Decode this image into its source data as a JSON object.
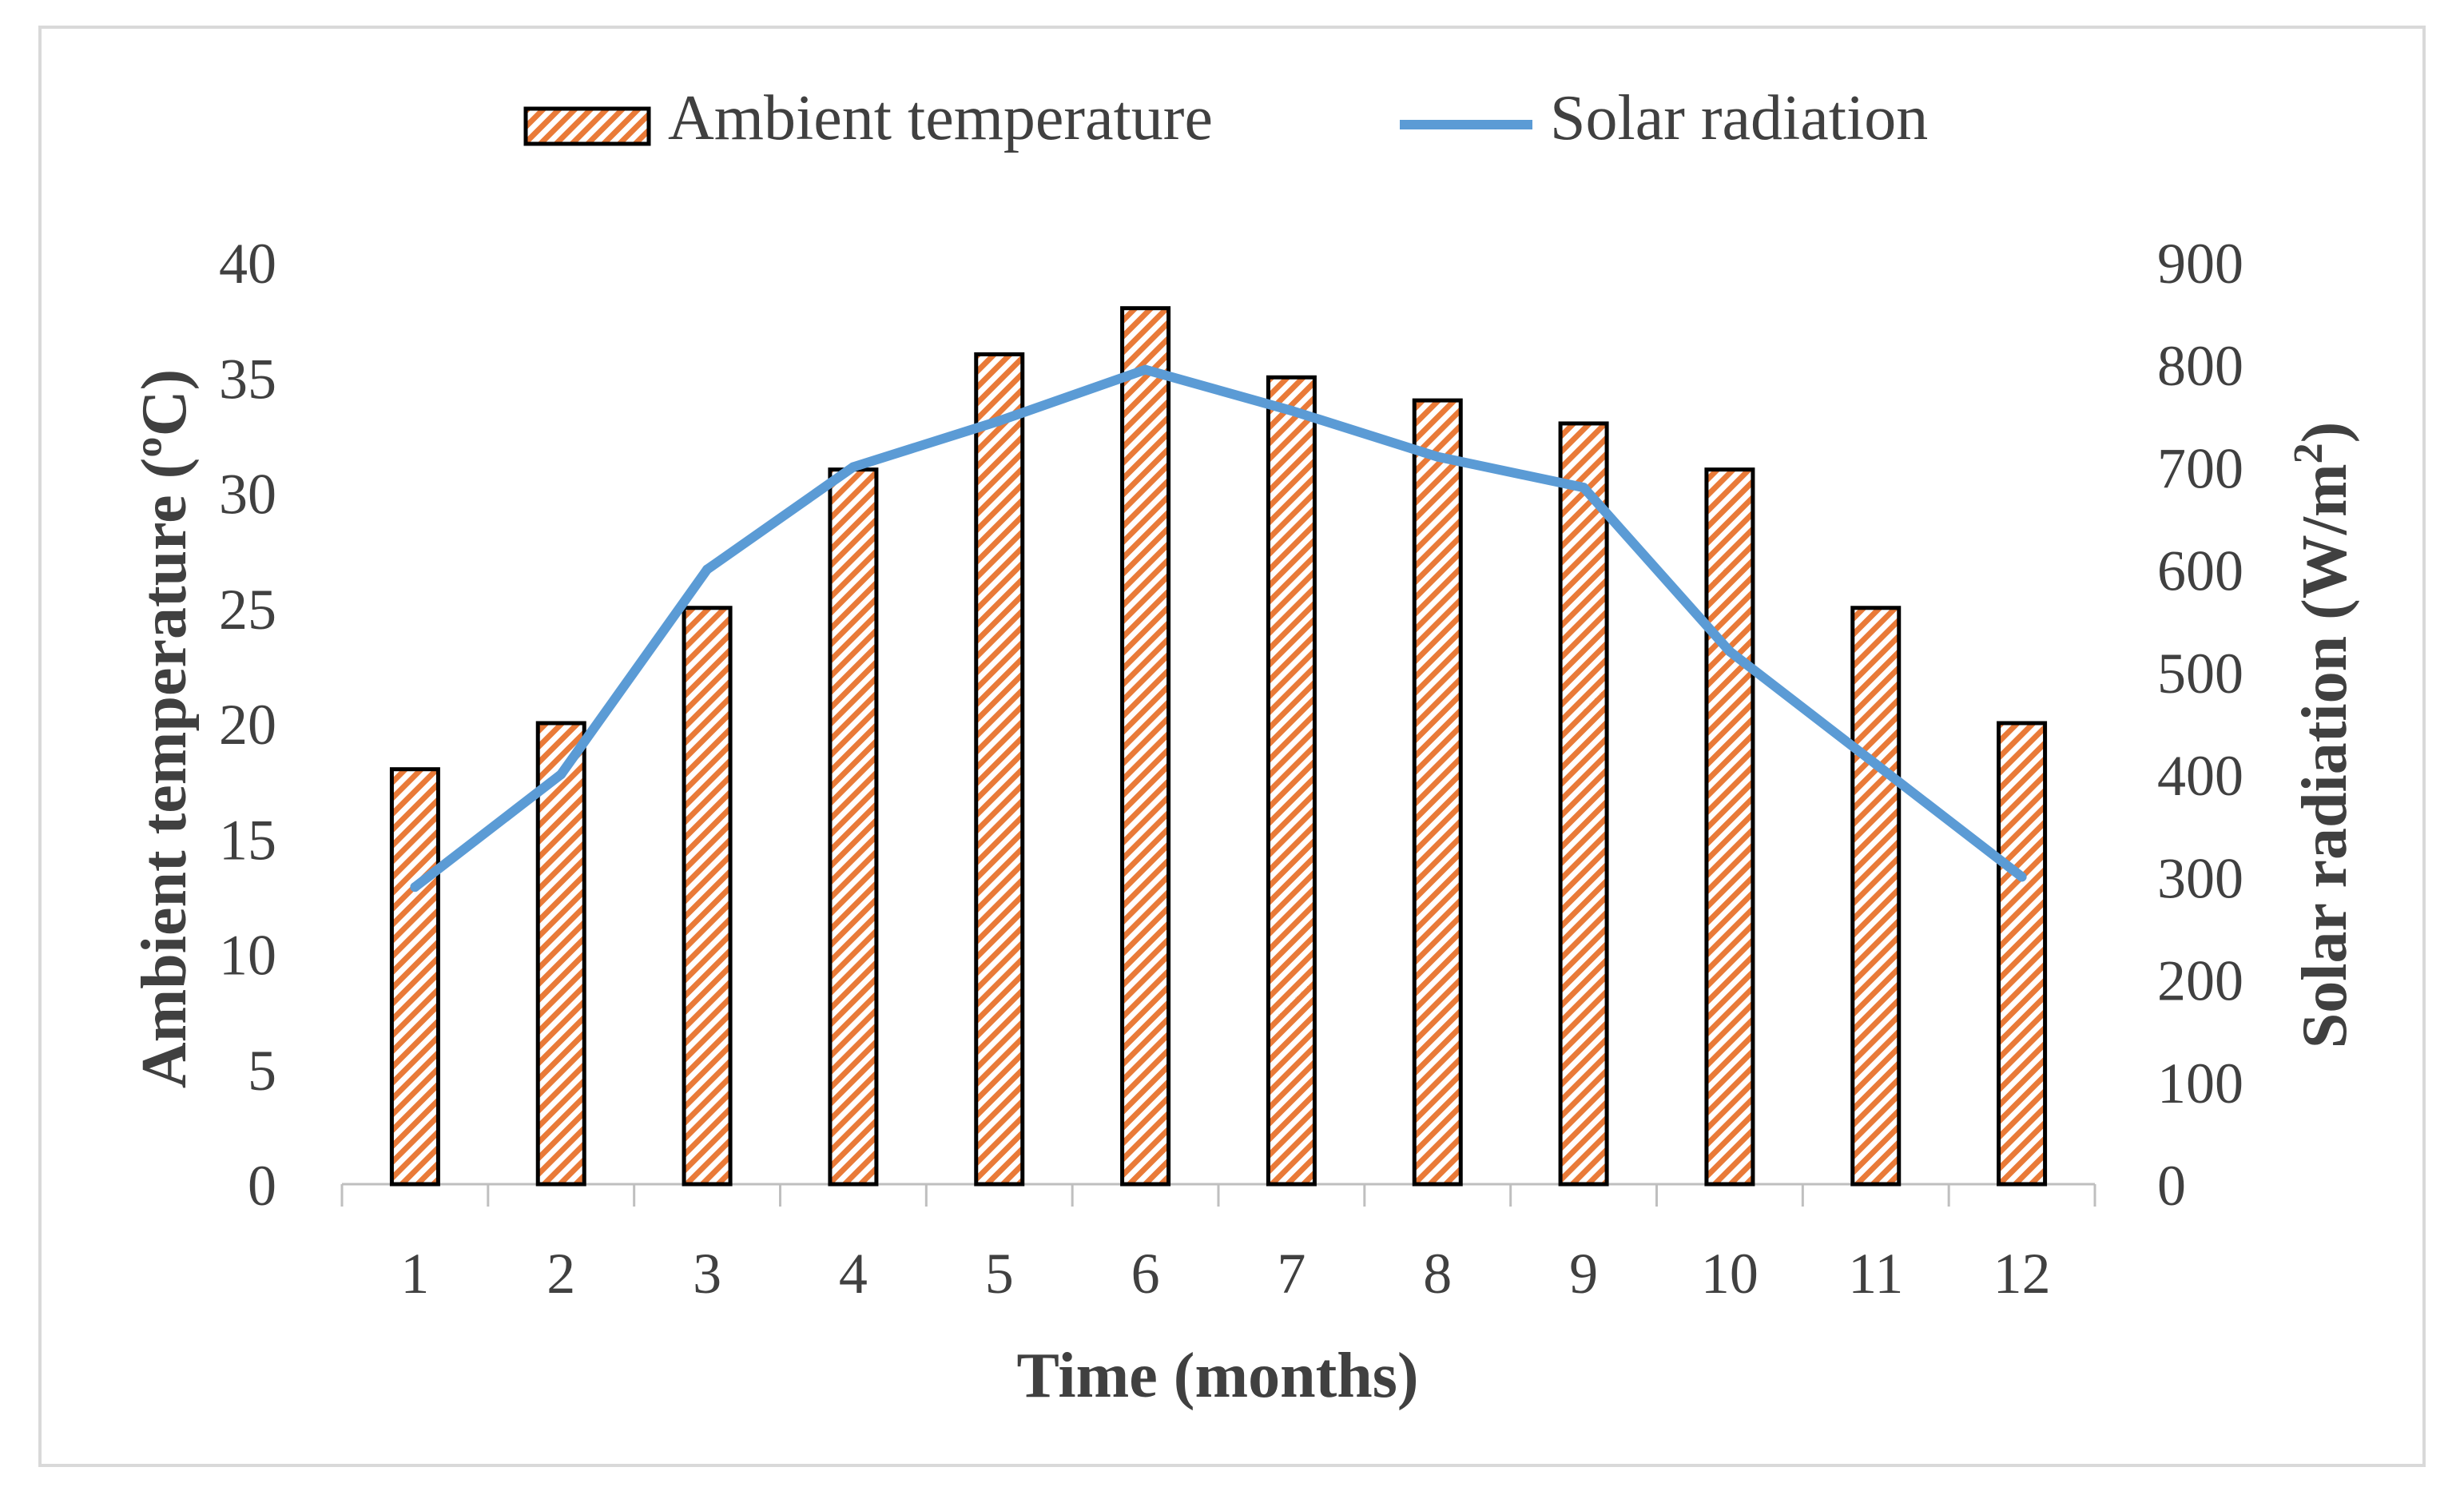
{
  "chart_data": {
    "type": "bar",
    "title": "",
    "categories": [
      "1",
      "2",
      "3",
      "4",
      "5",
      "6",
      "7",
      "8",
      "9",
      "10",
      "11",
      "12"
    ],
    "xlabel": "Time (months)",
    "ylabel_left": "Ambient temperature (ºC)",
    "ylabel_right": {
      "prefix": "Solar radiation (W/m",
      "superscript": "2",
      "suffix": ")"
    },
    "ylim_left": [
      0,
      40
    ],
    "yticks_left": [
      0,
      5,
      10,
      15,
      20,
      25,
      30,
      35,
      40
    ],
    "ylim_right": [
      0,
      900
    ],
    "yticks_right": [
      0,
      100,
      200,
      300,
      400,
      500,
      600,
      700,
      800,
      900
    ],
    "series": [
      {
        "name": "Ambient temperature",
        "type": "bar",
        "axis": "left",
        "values": [
          18,
          20,
          25,
          31,
          36,
          38,
          35,
          34,
          33,
          31,
          25,
          20
        ]
      },
      {
        "name": "Solar radiation",
        "type": "line",
        "axis": "right",
        "values": [
          290,
          400,
          600,
          700,
          745,
          795,
          755,
          710,
          680,
          520,
          410,
          300
        ]
      }
    ],
    "grid": false,
    "legend": "top-center",
    "colors": {
      "bar_hatch": "#e97a38",
      "bar_outline": "#000000",
      "line": "#5b9bd5",
      "text": "#404040",
      "axis": "#bfbfbf",
      "frame": "#d9d9d9"
    }
  }
}
